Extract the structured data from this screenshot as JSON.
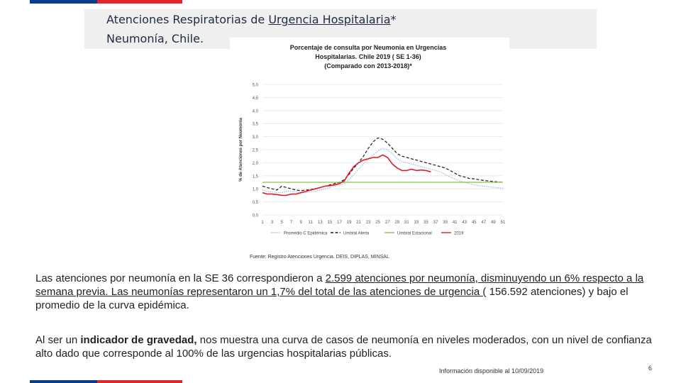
{
  "colors": {
    "brand_blue": "#0b3c8c",
    "brand_red": "#e0262e",
    "title_band": "#efefef"
  },
  "slide": {
    "title_prefix": "Atenciones  Respiratorias de ",
    "title_underlined": "Urgencia Hospitalaria",
    "title_suffix": "*",
    "subtitle": "Neumonía,  Chile.",
    "paragraph1": {
      "a": "Las atenciones por neumonía en la SE  36 correspondieron a ",
      "b": "2.599 atenciones por neumonía, disminuyendo un 6% respecto a la semana previa. Las neumonías representaron un 1,7% del total de las atenciones de urgencia (",
      "c": " 156.592 atenciones) y bajo el promedio de la curva epidémica."
    },
    "paragraph2": {
      "a": "Al ser un ",
      "bold": "indicador de gravedad,",
      "b": " nos muestra una curva de casos de neumonía en niveles moderados, con  un nivel de confianza alto dado que corresponde al 100% de las urgencias hospitalarias públicas."
    },
    "footnote": "Información disponible al 10/09/2019",
    "page_number": "6"
  },
  "chart_data": {
    "type": "line",
    "title_lines": [
      "Porcentaje de consulta por  Neumonia en Urgencias",
      "Hospitalarias.  Chile  2019 ( SE 1-36)",
      "(Comparado con 2013-2018)*"
    ],
    "ylabel": "% de Atenciones por  Neumonia",
    "xlabel": "",
    "ylim": [
      0,
      5
    ],
    "yticks": [
      "0,0",
      "0,5",
      "1,0",
      "1,5",
      "2,0",
      "2,5",
      "3,0",
      "3,5",
      "4,0",
      "4,5",
      "5,0"
    ],
    "x": [
      1,
      2,
      3,
      4,
      5,
      6,
      7,
      8,
      9,
      10,
      11,
      12,
      13,
      14,
      15,
      16,
      17,
      18,
      19,
      20,
      21,
      22,
      23,
      24,
      25,
      26,
      27,
      28,
      29,
      30,
      31,
      32,
      33,
      34,
      35,
      36,
      37,
      38,
      39,
      40,
      41,
      42,
      43,
      44,
      45,
      46,
      47,
      48,
      49,
      50,
      51
    ],
    "xticks": [
      "1",
      "3",
      "5",
      "7",
      "9",
      "11",
      "13",
      "15",
      "17",
      "19",
      "21",
      "23",
      "25",
      "27",
      "29",
      "31",
      "33",
      "35",
      "37",
      "39",
      "41",
      "43",
      "45",
      "47",
      "49",
      "51"
    ],
    "grid": true,
    "legend_position": "bottom",
    "source": "Fuente: Registro Atenciones Urgencia. DEIS, DIPLAS, MINSAL",
    "series": [
      {
        "name": "Promedio C Epidémica",
        "color": "#8ea9d6",
        "style": "dotted",
        "values": [
          0.95,
          0.9,
          0.88,
          0.85,
          0.85,
          0.9,
          0.9,
          0.88,
          0.85,
          0.85,
          0.88,
          0.9,
          0.95,
          1.0,
          1.05,
          1.1,
          1.15,
          1.2,
          1.35,
          1.55,
          1.75,
          1.95,
          2.15,
          2.3,
          2.45,
          2.55,
          2.5,
          2.35,
          2.15,
          2.05,
          2.0,
          1.95,
          1.9,
          1.85,
          1.8,
          1.75,
          1.7,
          1.65,
          1.55,
          1.45,
          1.38,
          1.3,
          1.25,
          1.2,
          1.15,
          1.12,
          1.1,
          1.08,
          1.06,
          1.04,
          1.02
        ]
      },
      {
        "name": "Umbral Alerta",
        "color": "#1a1a1a",
        "style": "dashed",
        "values": [
          1.1,
          1.05,
          1.0,
          0.95,
          1.1,
          1.05,
          1.0,
          0.95,
          0.93,
          0.95,
          0.97,
          1.0,
          1.05,
          1.1,
          1.15,
          1.2,
          1.25,
          1.35,
          1.55,
          1.8,
          2.0,
          2.25,
          2.55,
          2.8,
          2.95,
          2.9,
          2.75,
          2.55,
          2.35,
          2.25,
          2.2,
          2.15,
          2.1,
          2.05,
          2.0,
          1.95,
          1.9,
          1.85,
          1.8,
          1.7,
          1.6,
          1.5,
          1.45,
          1.4,
          1.38,
          1.35,
          1.32,
          1.3,
          1.28,
          1.26,
          1.25
        ]
      },
      {
        "name": "Umbral Estacional",
        "color": "#8cbf4a",
        "style": "solid",
        "values": [
          1.25,
          1.25,
          1.25,
          1.25,
          1.25,
          1.25,
          1.25,
          1.25,
          1.25,
          1.25,
          1.25,
          1.25,
          1.25,
          1.25,
          1.25,
          1.25,
          1.25,
          1.25,
          1.25,
          1.25,
          1.25,
          1.25,
          1.25,
          1.25,
          1.25,
          1.25,
          1.25,
          1.25,
          1.25,
          1.25,
          1.25,
          1.25,
          1.25,
          1.25,
          1.25,
          1.25,
          1.25,
          1.25,
          1.25,
          1.25,
          1.25,
          1.25,
          1.25,
          1.25,
          1.25,
          1.25,
          1.25,
          1.25,
          1.25,
          1.25,
          1.25
        ]
      },
      {
        "name": "2019",
        "color": "#d71f27",
        "style": "solid",
        "values": [
          0.85,
          0.8,
          0.8,
          0.78,
          0.75,
          0.75,
          0.8,
          0.8,
          0.85,
          0.9,
          0.95,
          1.0,
          1.05,
          1.1,
          1.12,
          1.15,
          1.2,
          1.3,
          1.6,
          1.85,
          2.0,
          2.1,
          2.15,
          2.2,
          2.2,
          2.3,
          2.2,
          1.95,
          1.8,
          1.7,
          1.7,
          1.75,
          1.7,
          1.72,
          1.7,
          1.65,
          null,
          null,
          null,
          null,
          null,
          null,
          null,
          null,
          null,
          null,
          null,
          null,
          null,
          null,
          null
        ]
      }
    ]
  }
}
